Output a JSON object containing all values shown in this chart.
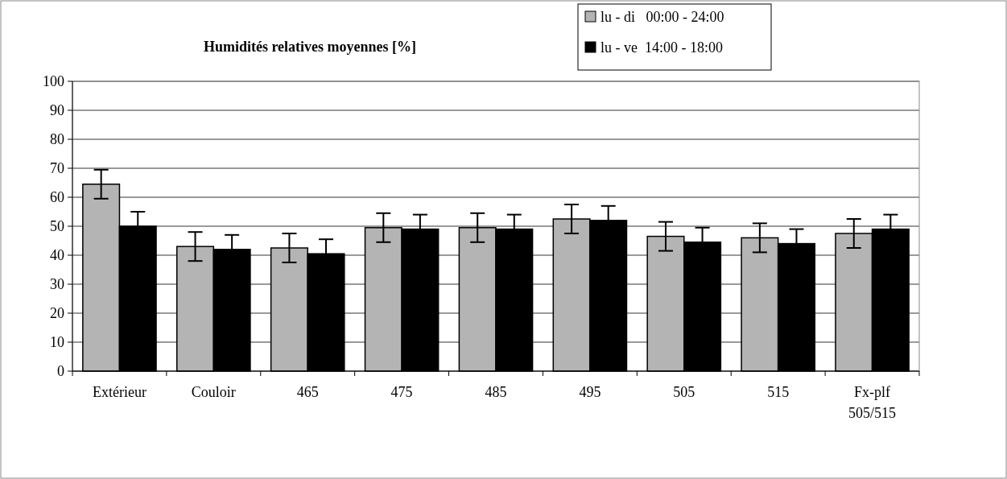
{
  "chart_data": {
    "type": "bar",
    "title": "Humidités relatives moyennes [%]",
    "categories": [
      "Extérieur",
      "Couloir",
      "465",
      "475",
      "485",
      "495",
      "505",
      "515",
      "Fx-plf\n505/515"
    ],
    "series": [
      {
        "name": "lu - di   00:00 - 24:00",
        "color": "#b4b4b4",
        "values": [
          64.5,
          43,
          42.5,
          49.5,
          49.5,
          52.5,
          46.5,
          46,
          47.5
        ],
        "errors": [
          5,
          5,
          5,
          5,
          5,
          5,
          5,
          5,
          5
        ]
      },
      {
        "name": "lu - ve  14:00 - 18:00",
        "color": "#000000",
        "values": [
          50,
          42,
          40.5,
          49,
          49,
          52,
          44.5,
          44,
          49
        ],
        "errors": [
          5,
          5,
          5,
          5,
          5,
          5,
          5,
          5,
          5
        ]
      }
    ],
    "ylim": [
      0,
      100
    ],
    "yticks": [
      0,
      10,
      20,
      30,
      40,
      50,
      60,
      70,
      80,
      90,
      100
    ],
    "grid": "y",
    "legend": "top right"
  }
}
